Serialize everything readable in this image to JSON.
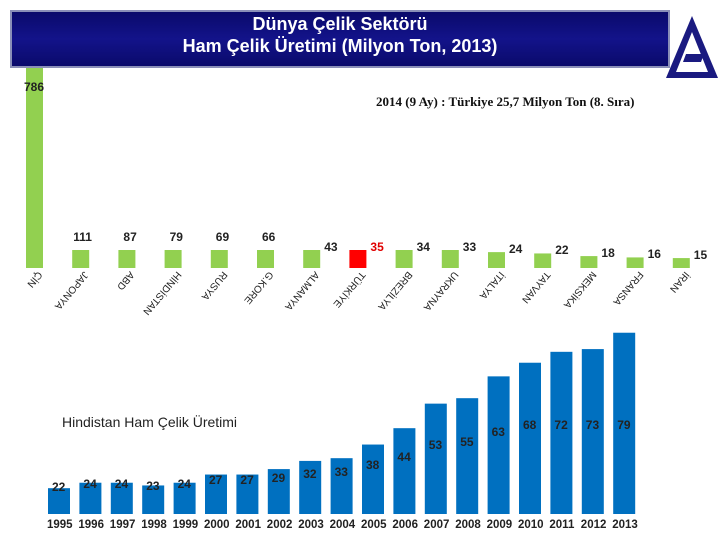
{
  "header": {
    "title_line1": "Dünya Çelik Sektörü",
    "title_line2": "Ham Çelik Üretimi (Milyon Ton, 2013)"
  },
  "logo_icon": "company-logo-icon",
  "note": "2014 (9 Ay) : Türkiye 25,7 Milyon Ton (8. Sıra)",
  "colors": {
    "bar": "#92d050",
    "banner": "#10107a",
    "highlight": "#ff0000",
    "bottom_bar": "#0070c0"
  },
  "chart_data": [
    {
      "type": "bar",
      "title": "",
      "categories": [
        "ÇİN",
        "JAPONYA",
        "ABD",
        "HİNDİSTAN",
        "RUSYA",
        "G.KORE",
        "ALMANYA",
        "TÜRKİYE",
        "BREZİLYA",
        "UKRAYNA",
        "İTALYA",
        "TAYVAN",
        "MEKSİKA",
        "FRANSA",
        "İRAN"
      ],
      "values": [
        786,
        111,
        87,
        79,
        69,
        66,
        43,
        35,
        34,
        33,
        24,
        22,
        18,
        16,
        15
      ],
      "value_labels": [
        "786",
        "111",
        "87",
        "79",
        "69",
        "66",
        "43",
        "35",
        "34",
        "33",
        "24",
        "22",
        "18",
        "16",
        "15"
      ],
      "highlight": "TÜRKİYE",
      "ylim": [
        0,
        786
      ]
    },
    {
      "type": "bar",
      "title": "Hindistan Ham Çelik Üretimi",
      "categories": [
        "1995",
        "1996",
        "1997",
        "1998",
        "1999",
        "2000",
        "2001",
        "2002",
        "2003",
        "2004",
        "2005",
        "2006",
        "2007",
        "2008",
        "2009",
        "2010",
        "2011",
        "2012",
        "2013"
      ],
      "values": [
        22,
        24,
        24,
        23,
        24,
        27,
        27,
        29,
        32,
        33,
        38,
        44,
        53,
        55,
        63,
        68,
        72,
        73,
        79
      ],
      "value_labels": [
        "22",
        "24",
        "24",
        "23",
        "24",
        "27",
        "27",
        "29",
        "32",
        "33",
        "38",
        "44",
        "53",
        "55",
        "63",
        "68",
        "72",
        "73",
        "79"
      ],
      "ylim": [
        0,
        80
      ]
    }
  ]
}
